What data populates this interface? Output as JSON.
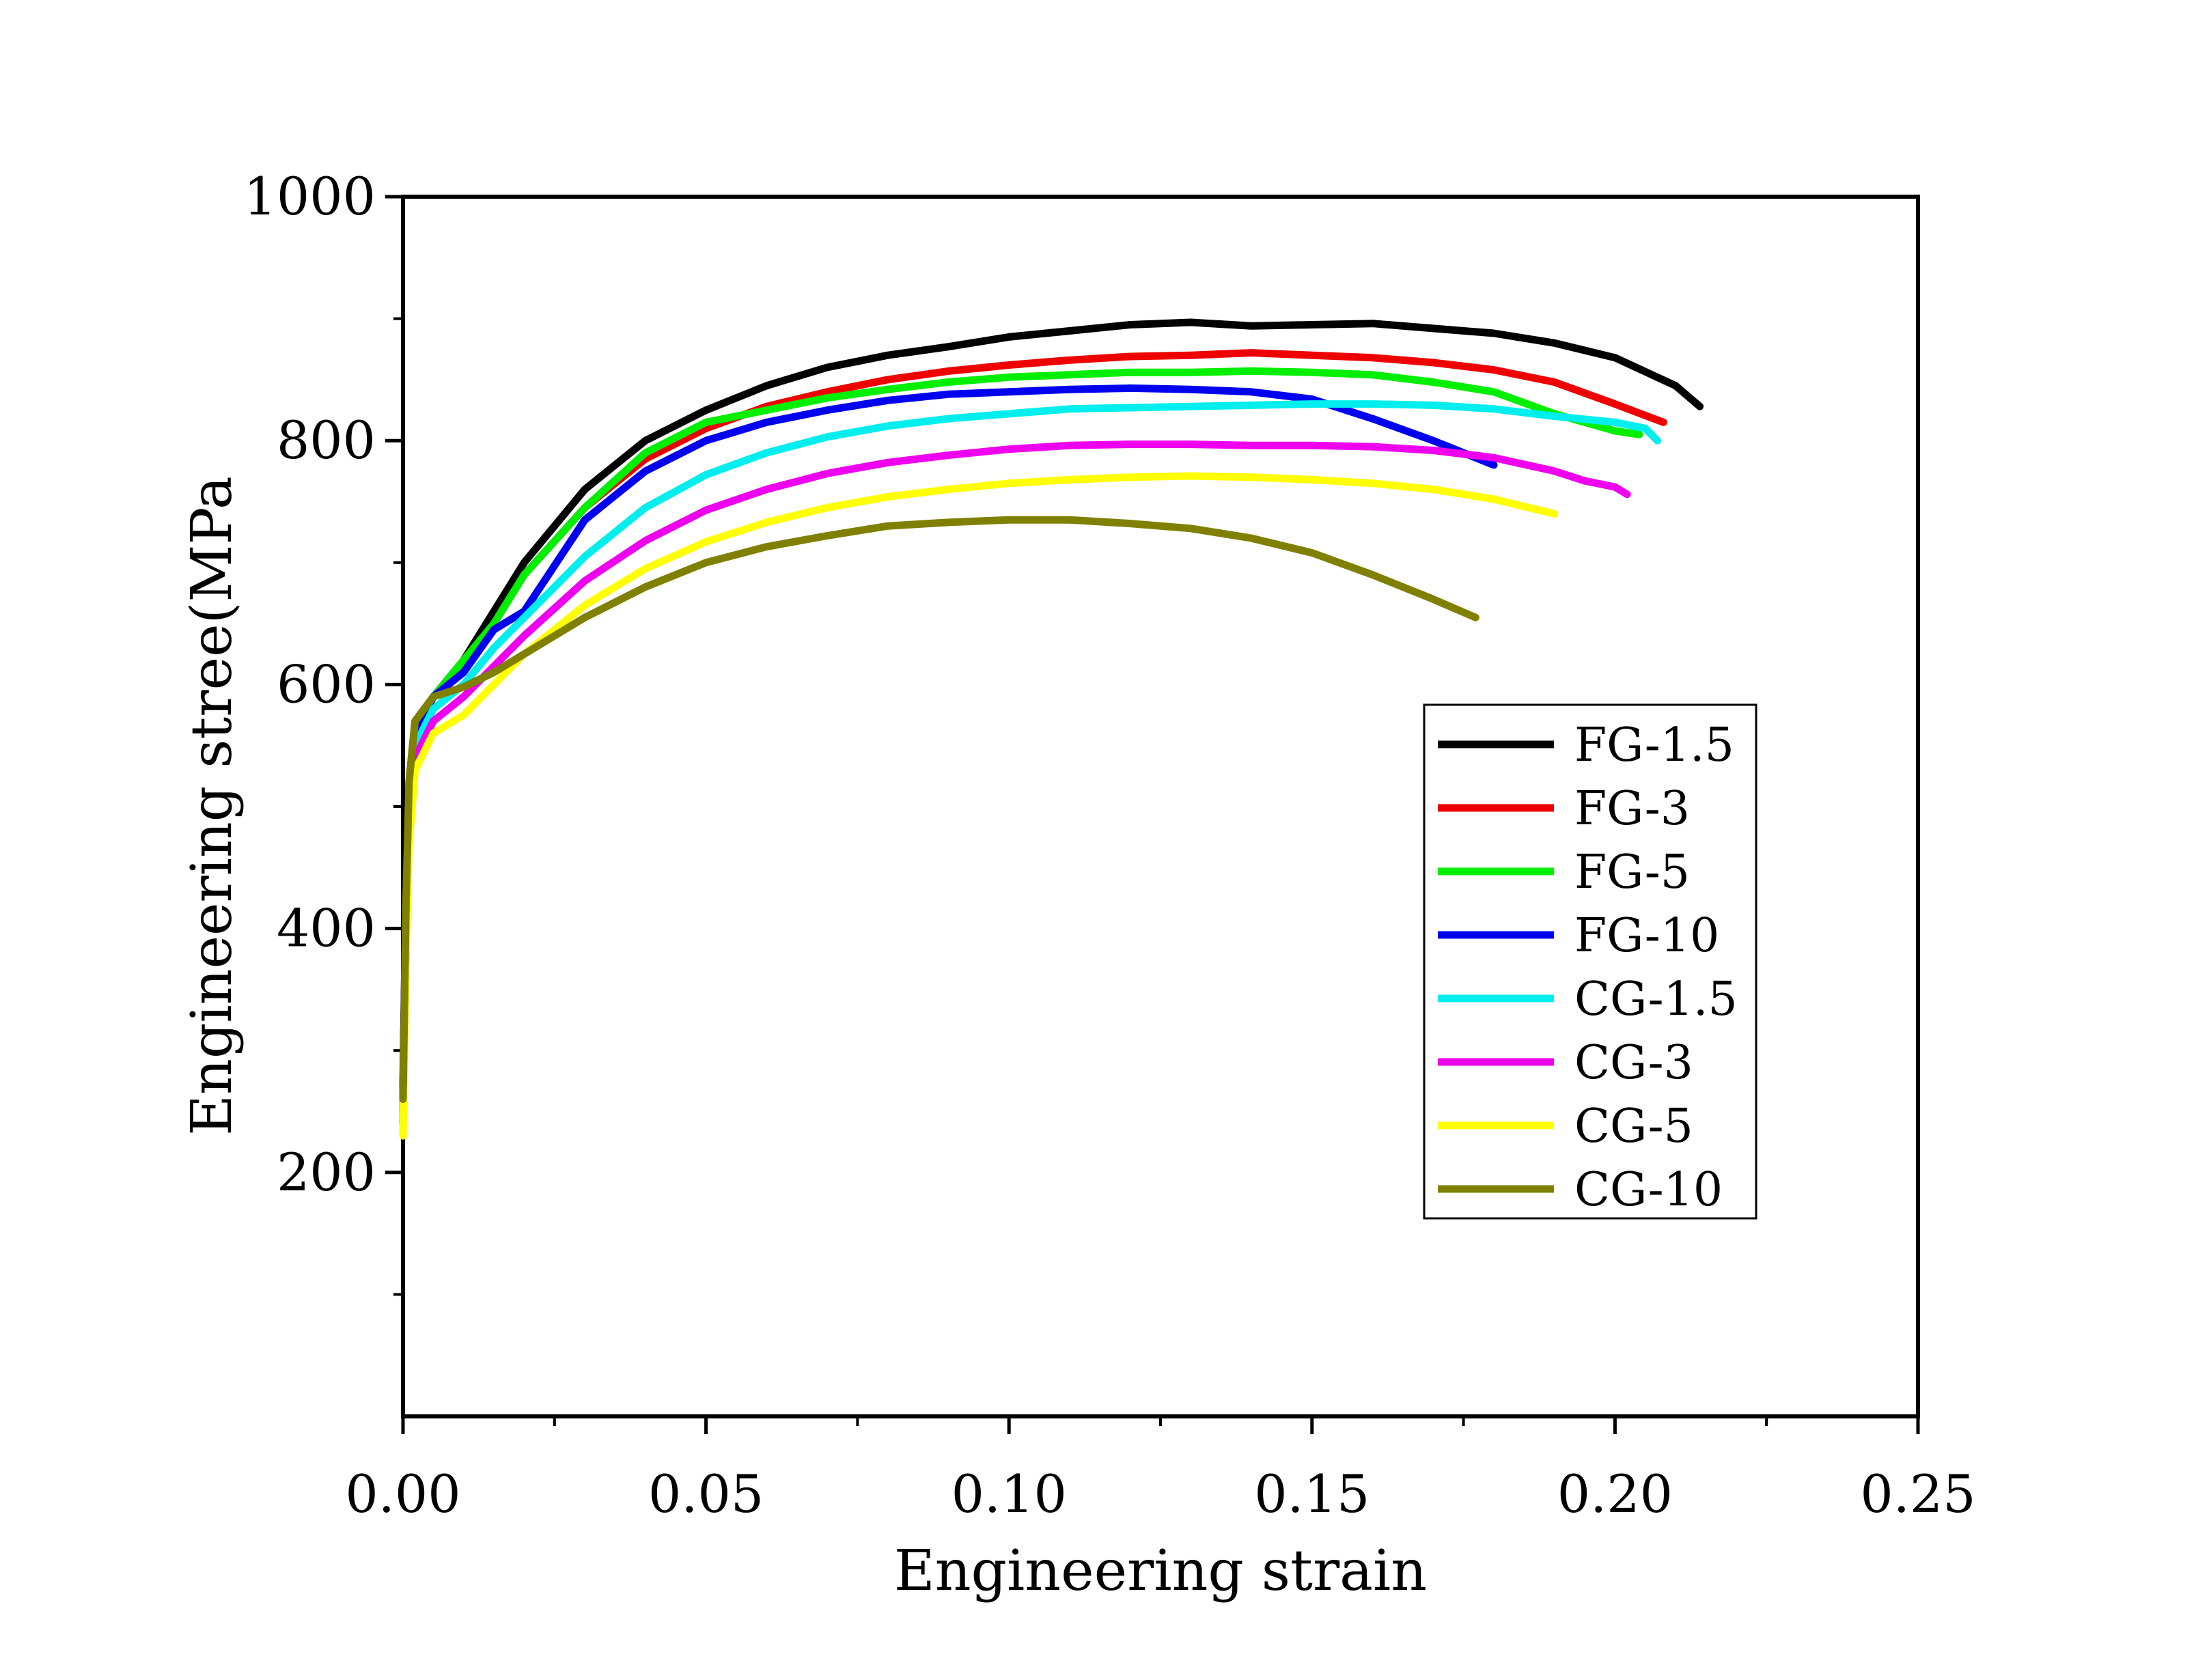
{
  "chart_data": {
    "type": "line",
    "title": "",
    "xlabel": "Engineering strain",
    "ylabel": "Engineering stree(MPa",
    "xlim": [
      0.0,
      0.25
    ],
    "ylim": [
      0,
      1000
    ],
    "x_ticks": [
      "0.00",
      "0.05",
      "0.10",
      "0.15",
      "0.20",
      "0.25"
    ],
    "y_ticks": [
      "200",
      "400",
      "600",
      "800",
      "1000"
    ],
    "grid": false,
    "legend_position": "right",
    "series": [
      {
        "name": "FG-1.5",
        "color": "#000000",
        "x": [
          0.0,
          0.0005,
          0.001,
          0.002,
          0.005,
          0.01,
          0.015,
          0.02,
          0.03,
          0.04,
          0.05,
          0.06,
          0.07,
          0.08,
          0.09,
          0.1,
          0.11,
          0.12,
          0.13,
          0.14,
          0.15,
          0.16,
          0.17,
          0.18,
          0.19,
          0.2,
          0.21,
          0.214
        ],
        "y": [
          270,
          430,
          520,
          570,
          590,
          620,
          660,
          700,
          760,
          800,
          825,
          845,
          860,
          870,
          877,
          885,
          890,
          895,
          897,
          894,
          895,
          896,
          892,
          888,
          880,
          868,
          845,
          828
        ]
      },
      {
        "name": "FG-3",
        "color": "#ee0000",
        "x": [
          0.0,
          0.0005,
          0.001,
          0.002,
          0.005,
          0.01,
          0.015,
          0.02,
          0.03,
          0.04,
          0.05,
          0.06,
          0.07,
          0.08,
          0.09,
          0.1,
          0.11,
          0.12,
          0.13,
          0.14,
          0.15,
          0.16,
          0.17,
          0.18,
          0.19,
          0.2,
          0.208
        ],
        "y": [
          260,
          420,
          510,
          560,
          590,
          610,
          650,
          690,
          745,
          785,
          810,
          828,
          840,
          850,
          857,
          862,
          866,
          869,
          870,
          872,
          870,
          868,
          864,
          858,
          848,
          830,
          815
        ]
      },
      {
        "name": "FG-5",
        "color": "#00ee00",
        "x": [
          0.0,
          0.0005,
          0.001,
          0.002,
          0.005,
          0.01,
          0.015,
          0.02,
          0.03,
          0.04,
          0.05,
          0.06,
          0.07,
          0.08,
          0.09,
          0.1,
          0.11,
          0.12,
          0.13,
          0.14,
          0.15,
          0.16,
          0.17,
          0.18,
          0.19,
          0.2,
          0.204
        ],
        "y": [
          250,
          420,
          510,
          560,
          590,
          620,
          650,
          690,
          745,
          790,
          815,
          825,
          835,
          842,
          848,
          852,
          854,
          856,
          856,
          857,
          856,
          854,
          848,
          840,
          822,
          808,
          805
        ]
      },
      {
        "name": "FG-10",
        "color": "#0000ee",
        "x": [
          0.0,
          0.0005,
          0.001,
          0.002,
          0.005,
          0.01,
          0.015,
          0.02,
          0.03,
          0.04,
          0.05,
          0.06,
          0.07,
          0.08,
          0.09,
          0.1,
          0.11,
          0.12,
          0.13,
          0.14,
          0.15,
          0.16,
          0.17,
          0.18
        ],
        "y": [
          260,
          420,
          510,
          560,
          590,
          610,
          645,
          660,
          735,
          775,
          800,
          815,
          825,
          833,
          838,
          840,
          842,
          843,
          842,
          840,
          834,
          818,
          800,
          780
        ]
      },
      {
        "name": "CG-1.5",
        "color": "#00eeee",
        "x": [
          0.0,
          0.0005,
          0.001,
          0.002,
          0.005,
          0.01,
          0.015,
          0.02,
          0.03,
          0.04,
          0.05,
          0.06,
          0.07,
          0.08,
          0.09,
          0.1,
          0.11,
          0.12,
          0.13,
          0.14,
          0.15,
          0.16,
          0.17,
          0.18,
          0.19,
          0.2,
          0.205,
          0.207
        ],
        "y": [
          250,
          400,
          500,
          550,
          580,
          600,
          630,
          655,
          705,
          745,
          772,
          790,
          803,
          812,
          818,
          822,
          826,
          827,
          828,
          829,
          830,
          830,
          829,
          826,
          820,
          815,
          810,
          800
        ]
      },
      {
        "name": "CG-3",
        "color": "#ee00ee",
        "x": [
          0.0,
          0.0005,
          0.001,
          0.002,
          0.005,
          0.01,
          0.015,
          0.02,
          0.03,
          0.04,
          0.05,
          0.06,
          0.07,
          0.08,
          0.09,
          0.1,
          0.11,
          0.12,
          0.13,
          0.14,
          0.15,
          0.16,
          0.17,
          0.18,
          0.19,
          0.195,
          0.2,
          0.202
        ],
        "y": [
          240,
          380,
          490,
          540,
          570,
          590,
          615,
          640,
          685,
          718,
          743,
          760,
          773,
          782,
          788,
          793,
          796,
          797,
          797,
          796,
          796,
          795,
          792,
          786,
          775,
          767,
          762,
          756
        ]
      },
      {
        "name": "CG-5",
        "color": "#ffff00",
        "x": [
          0.0,
          0.0005,
          0.001,
          0.002,
          0.005,
          0.01,
          0.015,
          0.02,
          0.03,
          0.04,
          0.05,
          0.06,
          0.07,
          0.08,
          0.09,
          0.1,
          0.11,
          0.12,
          0.13,
          0.14,
          0.15,
          0.16,
          0.17,
          0.18,
          0.19
        ],
        "y": [
          230,
          380,
          470,
          530,
          560,
          575,
          600,
          625,
          665,
          695,
          717,
          733,
          745,
          754,
          760,
          765,
          768,
          770,
          771,
          770,
          768,
          765,
          760,
          752,
          740
        ]
      },
      {
        "name": "CG-10",
        "color": "#808000",
        "x": [
          0.0,
          0.0005,
          0.001,
          0.002,
          0.005,
          0.01,
          0.015,
          0.02,
          0.03,
          0.04,
          0.05,
          0.06,
          0.07,
          0.08,
          0.09,
          0.1,
          0.11,
          0.12,
          0.13,
          0.14,
          0.15,
          0.16,
          0.17,
          0.177
        ],
        "y": [
          260,
          420,
          520,
          570,
          590,
          598,
          610,
          625,
          655,
          680,
          700,
          713,
          722,
          730,
          733,
          735,
          735,
          732,
          728,
          720,
          708,
          690,
          670,
          655
        ]
      }
    ]
  }
}
